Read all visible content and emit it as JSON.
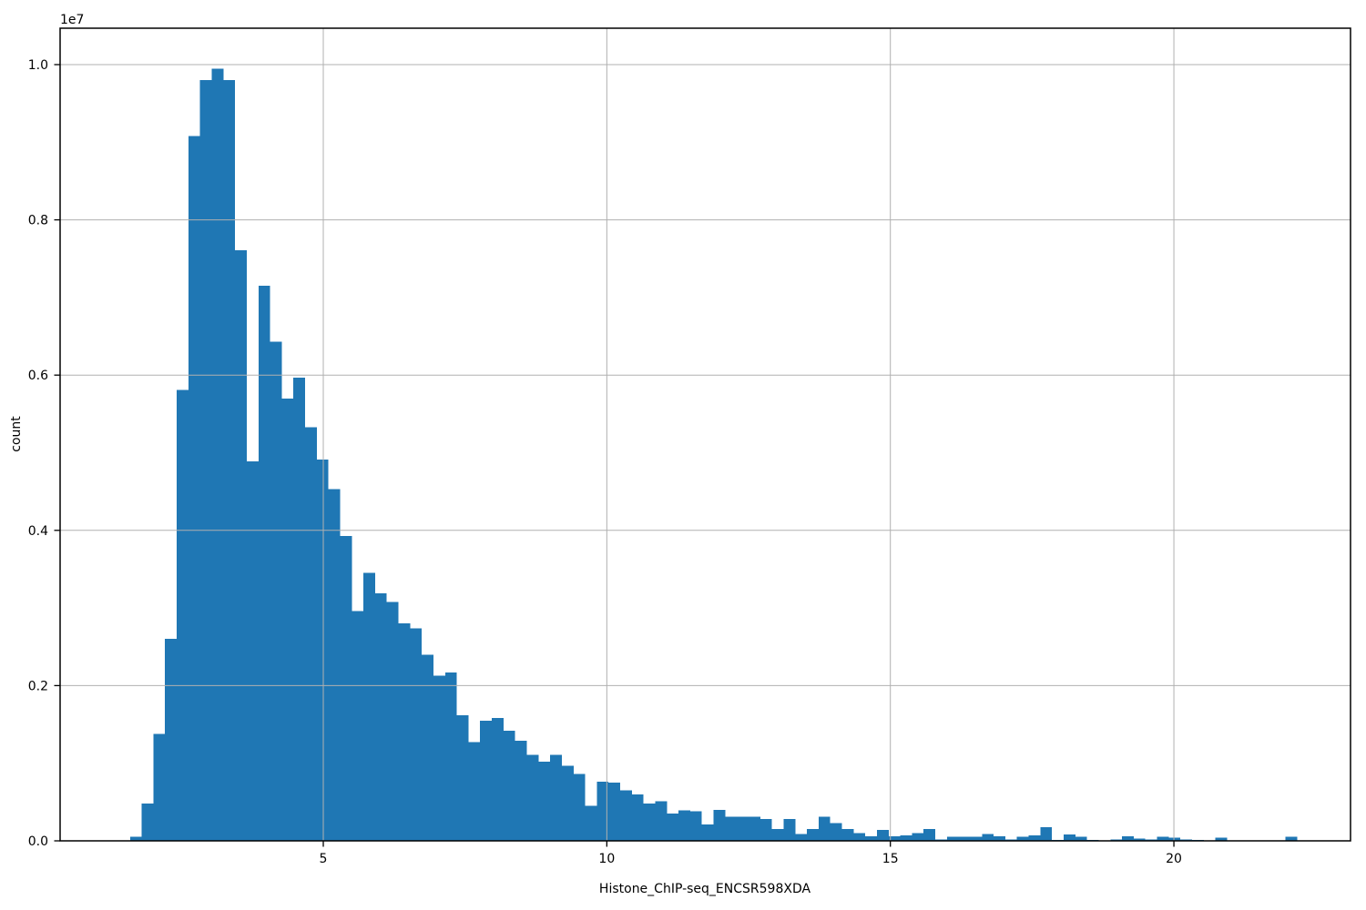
{
  "figure": {
    "background": "#ffffff"
  },
  "chart_data": {
    "type": "bar",
    "subtype": "histogram",
    "title": "",
    "xlabel": "Histone_ChIP-seq_ENCSR598XDA",
    "ylabel": "count",
    "y_offset_label": "1e7",
    "bar_color": "#1f77b4",
    "grid_color": "#b0b0b0",
    "axis_color": "#000000",
    "grid": true,
    "legend": false,
    "x_range": [
      0.36,
      23.11
    ],
    "y_range": [
      0,
      10470000
    ],
    "x_ticks": [
      {
        "value": 5,
        "label": "5"
      },
      {
        "value": 10,
        "label": "10"
      },
      {
        "value": 15,
        "label": "15"
      },
      {
        "value": 20,
        "label": "20"
      }
    ],
    "y_ticks": [
      {
        "value": 0,
        "label": "0.0"
      },
      {
        "value": 2000000,
        "label": "0.2"
      },
      {
        "value": 4000000,
        "label": "0.4"
      },
      {
        "value": 6000000,
        "label": "0.6"
      },
      {
        "value": 8000000,
        "label": "0.8"
      },
      {
        "value": 10000000,
        "label": "1.0"
      }
    ],
    "bins": {
      "start": 1.592,
      "width": 0.2058,
      "counts": [
        50000,
        480000,
        1380000,
        2600000,
        5810000,
        9080000,
        9800000,
        9950000,
        9800000,
        7610000,
        4890000,
        7150000,
        6430000,
        5700000,
        5970000,
        5330000,
        4910000,
        4530000,
        3930000,
        2960000,
        3450000,
        3190000,
        3080000,
        2800000,
        2740000,
        2400000,
        2130000,
        2170000,
        1620000,
        1270000,
        1550000,
        1580000,
        1420000,
        1290000,
        1110000,
        1020000,
        1110000,
        970000,
        860000,
        450000,
        760000,
        750000,
        650000,
        600000,
        480000,
        510000,
        350000,
        390000,
        380000,
        210000,
        400000,
        310000,
        310000,
        310000,
        280000,
        150000,
        280000,
        90000,
        150000,
        310000,
        230000,
        150000,
        100000,
        60000,
        140000,
        60000,
        70000,
        100000,
        150000,
        20000,
        50000,
        50000,
        50000,
        90000,
        60000,
        20000,
        50000,
        70000,
        175000,
        10000,
        80000,
        50000,
        10000,
        0,
        15000,
        60000,
        30000,
        15000,
        50000,
        40000,
        20000,
        10000,
        0,
        40000,
        0,
        0,
        0,
        0,
        0,
        50000
      ]
    }
  }
}
